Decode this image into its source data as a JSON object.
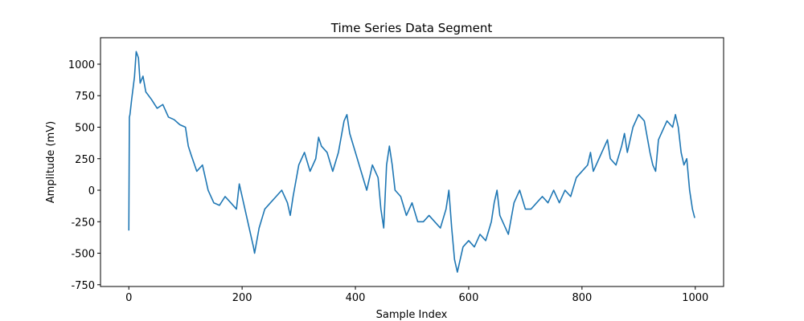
{
  "chart_data": {
    "type": "line",
    "title": "Time Series Data Segment",
    "x_label": "Sample Index",
    "y_label": "Amplitude (mV)",
    "x": [
      0,
      1,
      2,
      5,
      10,
      13,
      17,
      20,
      25,
      30,
      40,
      50,
      60,
      70,
      80,
      90,
      100,
      105,
      110,
      120,
      130,
      140,
      150,
      160,
      170,
      180,
      190,
      195,
      200,
      210,
      220,
      222,
      230,
      240,
      250,
      260,
      270,
      280,
      285,
      290,
      300,
      310,
      320,
      330,
      335,
      340,
      350,
      360,
      370,
      380,
      385,
      390,
      400,
      410,
      420,
      430,
      440,
      445,
      450,
      455,
      460,
      465,
      470,
      480,
      490,
      500,
      510,
      520,
      530,
      540,
      550,
      560,
      565,
      570,
      575,
      580,
      590,
      600,
      610,
      620,
      630,
      640,
      645,
      650,
      655,
      660,
      670,
      680,
      690,
      700,
      710,
      720,
      730,
      740,
      750,
      760,
      770,
      780,
      790,
      800,
      810,
      815,
      820,
      830,
      840,
      845,
      850,
      860,
      870,
      875,
      880,
      890,
      900,
      910,
      920,
      925,
      930,
      935,
      940,
      950,
      960,
      965,
      970,
      975,
      980,
      985,
      990,
      995,
      999
    ],
    "series": [
      {
        "name": "Amplitude",
        "color": "#1f77b4",
        "values": [
          -320,
          580,
          600,
          720,
          900,
          1100,
          1050,
          850,
          905,
          780,
          720,
          650,
          680,
          580,
          560,
          520,
          500,
          350,
          280,
          150,
          200,
          0,
          -100,
          -120,
          -50,
          -100,
          -150,
          50,
          -50,
          -250,
          -450,
          -500,
          -300,
          -150,
          -100,
          -50,
          0,
          -100,
          -200,
          -50,
          200,
          300,
          150,
          250,
          420,
          350,
          300,
          150,
          300,
          550,
          600,
          450,
          300,
          150,
          0,
          200,
          100,
          -150,
          -300,
          200,
          350,
          200,
          0,
          -50,
          -200,
          -100,
          -250,
          -250,
          -200,
          -250,
          -300,
          -150,
          0,
          -300,
          -550,
          -650,
          -450,
          -400,
          -450,
          -350,
          -400,
          -250,
          -100,
          0,
          -200,
          -250,
          -350,
          -100,
          0,
          -150,
          -150,
          -100,
          -50,
          -100,
          0,
          -100,
          0,
          -50,
          100,
          150,
          200,
          300,
          150,
          250,
          350,
          400,
          250,
          200,
          350,
          450,
          300,
          500,
          600,
          550,
          300,
          200,
          150,
          400,
          450,
          550,
          500,
          600,
          500,
          300,
          200,
          250,
          0,
          -150,
          -220
        ]
      }
    ],
    "xlim": [
      -50,
      1050
    ],
    "ylim": [
      -764,
      1210
    ],
    "xticks": [
      0,
      200,
      400,
      600,
      800,
      1000
    ],
    "yticks": [
      -750,
      -500,
      -250,
      0,
      250,
      500,
      750,
      1000
    ]
  }
}
